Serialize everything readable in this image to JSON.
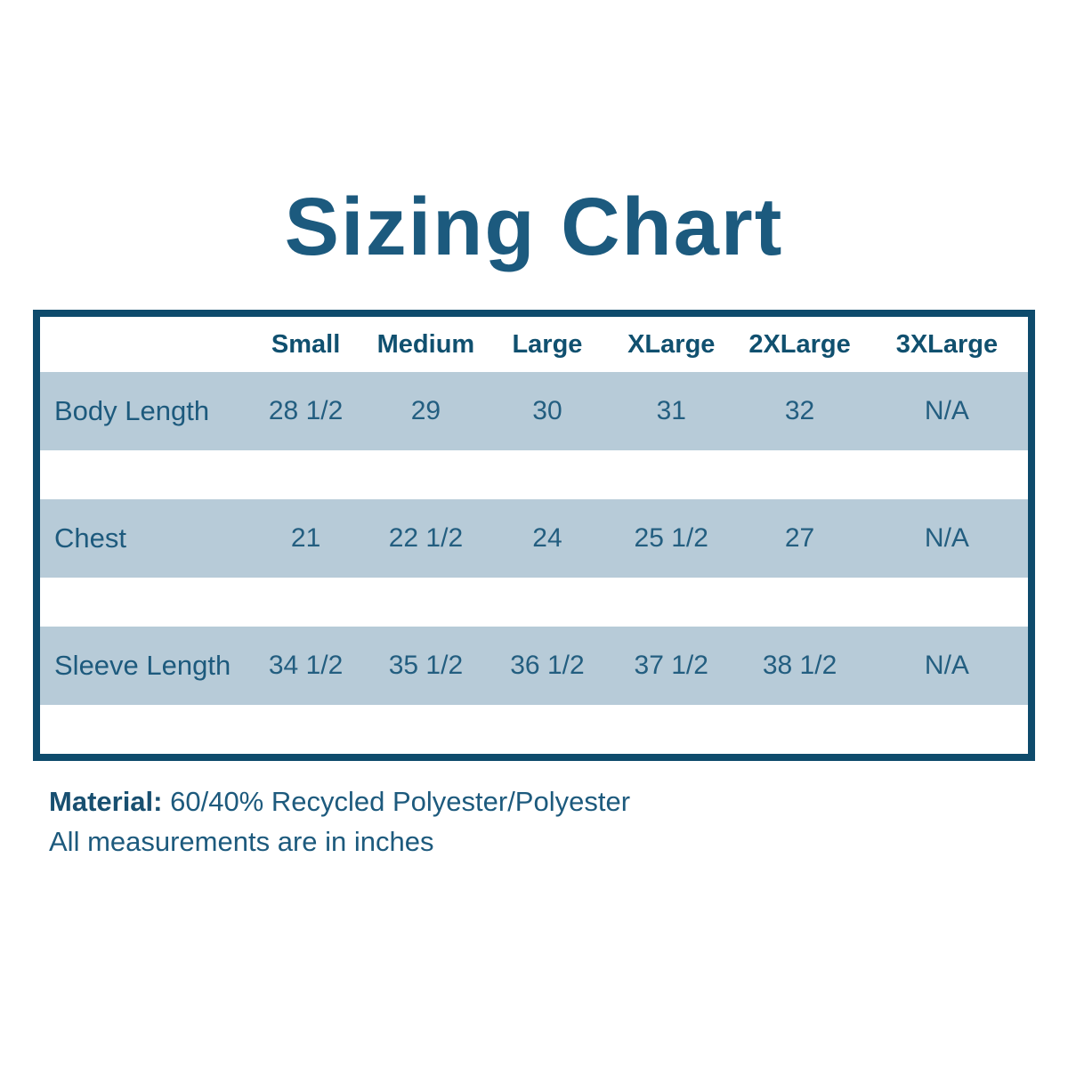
{
  "title": "Sizing Chart",
  "table": {
    "columns": [
      "Small",
      "Medium",
      "Large",
      "XLarge",
      "2XLarge",
      "3XLarge"
    ],
    "rows": [
      {
        "label": "Body Length",
        "values": [
          "28 1/2",
          "29",
          "30",
          "31",
          "32",
          "N/A"
        ]
      },
      {
        "label": "Chest",
        "values": [
          "21",
          "22 1/2",
          "24",
          "25 1/2",
          "27",
          "N/A"
        ]
      },
      {
        "label": "Sleeve Length",
        "values": [
          "34 1/2",
          "35 1/2",
          "36 1/2",
          "37 1/2",
          "38 1/2",
          "N/A"
        ]
      }
    ]
  },
  "footer": {
    "material_label": "Material:",
    "material_value": "60/40% Recycled Polyester/Polyester",
    "note": "All measurements are in inches"
  },
  "colors": {
    "border_teal": "#0e4b6c",
    "row_blue": "#b7cbd8",
    "text_teal": "#1d5a7d",
    "title_teal": "#1c5a7e"
  }
}
